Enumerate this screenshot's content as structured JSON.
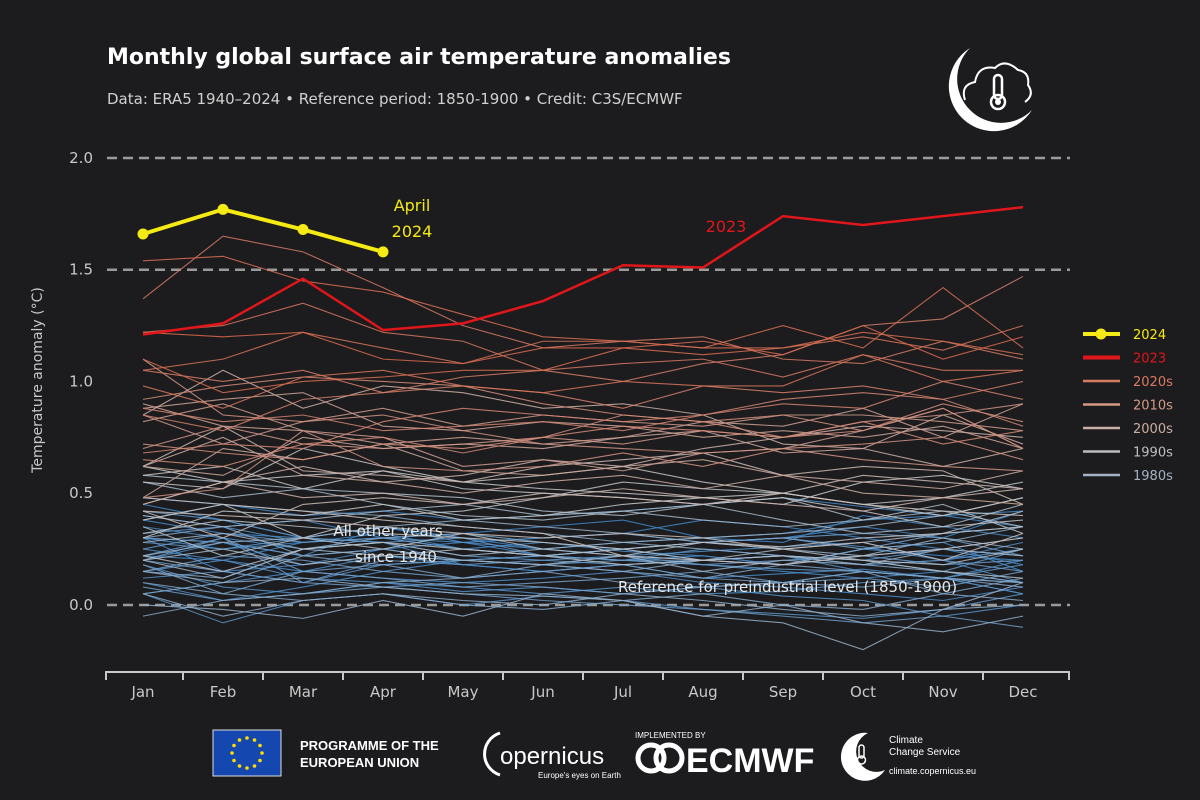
{
  "chart_data": {
    "type": "line",
    "title": "Monthly global surface air temperature anomalies",
    "subtitle": "Data: ERA5 1940–2024 • Reference period: 1850-1900 • Credit: C3S/ECMWF",
    "xlabel": "",
    "ylabel": "Temperature anomaly (°C)",
    "categories": [
      "Jan",
      "Feb",
      "Mar",
      "Apr",
      "May",
      "Jun",
      "Jul",
      "Aug",
      "Sep",
      "Oct",
      "Nov",
      "Dec"
    ],
    "yticks": [
      "0.0",
      "0.5",
      "1.0",
      "1.5",
      "2.0"
    ],
    "ylim": [
      -0.3,
      2.0
    ],
    "dashed_gridlines_at": [
      0.0,
      1.5,
      2.0
    ],
    "legend_position": "right",
    "legend": [
      {
        "label": "2024",
        "color": "#f5ea14",
        "marker": true
      },
      {
        "label": "2023",
        "color": "#e0161a"
      },
      {
        "label": "2020s",
        "color": "#d97a62"
      },
      {
        "label": "2010s",
        "color": "#d49a84"
      },
      {
        "label": "2000s",
        "color": "#c9aea3"
      },
      {
        "label": "1990s",
        "color": "#bdbdbd"
      },
      {
        "label": "1980s",
        "color": "#a3b3c4"
      }
    ],
    "highlight_series": [
      {
        "name": "2024",
        "color": "#f5ea14",
        "values": [
          1.66,
          1.77,
          1.68,
          1.58
        ]
      },
      {
        "name": "2023",
        "color": "#e0161a",
        "values": [
          1.21,
          1.26,
          1.46,
          1.23,
          1.26,
          1.36,
          1.52,
          1.51,
          1.74,
          1.7,
          1.74,
          1.78
        ]
      }
    ],
    "annotations": {
      "april_2024": [
        "April",
        "2024"
      ],
      "label_2023": "2023",
      "other_years": [
        "All other years",
        "since 1940"
      ],
      "reference": "Reference for preindustrial level (1850-1900)"
    },
    "colors": {
      "cold": "#3f86c8",
      "mid": "#c8c8c8",
      "warm": "#d9694c"
    },
    "other_years": {
      "1940": [
        0.45,
        0.38,
        0.3,
        0.35,
        0.28,
        0.3,
        0.32,
        0.28,
        0.3,
        0.35,
        0.3,
        0.42
      ],
      "1941": [
        0.4,
        0.35,
        0.38,
        0.3,
        0.32,
        0.35,
        0.38,
        0.3,
        0.28,
        0.4,
        0.35,
        0.3
      ],
      "1942": [
        0.3,
        0.25,
        0.28,
        0.32,
        0.25,
        0.22,
        0.2,
        0.22,
        0.18,
        0.25,
        0.22,
        0.2
      ],
      "1943": [
        0.2,
        0.28,
        0.22,
        0.35,
        0.3,
        0.25,
        0.28,
        0.3,
        0.32,
        0.38,
        0.4,
        0.42
      ],
      "1944": [
        0.48,
        0.45,
        0.4,
        0.42,
        0.38,
        0.4,
        0.42,
        0.45,
        0.48,
        0.44,
        0.4,
        0.35
      ],
      "1945": [
        0.38,
        0.32,
        0.3,
        0.35,
        0.28,
        0.3,
        0.32,
        0.38,
        0.35,
        0.3,
        0.25,
        0.18
      ],
      "1946": [
        0.35,
        0.3,
        0.25,
        0.28,
        0.18,
        0.15,
        0.18,
        0.2,
        0.22,
        0.18,
        0.2,
        0.1
      ],
      "1947": [
        0.22,
        0.2,
        0.28,
        0.3,
        0.25,
        0.28,
        0.24,
        0.22,
        0.18,
        0.25,
        0.28,
        0.15
      ],
      "1948": [
        0.3,
        0.15,
        0.18,
        0.25,
        0.28,
        0.22,
        0.2,
        0.18,
        0.15,
        0.12,
        0.15,
        0.1
      ],
      "1949": [
        0.25,
        0.2,
        0.15,
        0.22,
        0.18,
        0.15,
        0.18,
        0.12,
        0.14,
        0.16,
        0.12,
        0.05
      ],
      "1950": [
        0.05,
        0.1,
        0.15,
        0.12,
        0.1,
        0.12,
        0.15,
        0.1,
        0.08,
        0.05,
        0.02,
        0.08
      ],
      "1951": [
        0.1,
        0.02,
        0.08,
        0.15,
        0.2,
        0.22,
        0.25,
        0.28,
        0.3,
        0.26,
        0.2,
        0.28
      ],
      "1952": [
        0.3,
        0.28,
        0.18,
        0.22,
        0.2,
        0.18,
        0.22,
        0.2,
        0.22,
        0.15,
        0.12,
        0.2
      ],
      "1953": [
        0.32,
        0.35,
        0.28,
        0.3,
        0.28,
        0.25,
        0.22,
        0.24,
        0.26,
        0.28,
        0.2,
        0.25
      ],
      "1954": [
        0.15,
        0.2,
        0.12,
        0.1,
        0.08,
        0.05,
        0.08,
        0.05,
        0.06,
        0.1,
        0.12,
        0.05
      ],
      "1955": [
        0.18,
        0.08,
        0.05,
        0.1,
        0.06,
        0.08,
        0.05,
        0.08,
        0.04,
        0.02,
        -0.05,
        0.0
      ],
      "1956": [
        0.05,
        -0.08,
        0.02,
        0.05,
        0.0,
        0.04,
        0.02,
        -0.02,
        -0.04,
        -0.06,
        -0.02,
        0.05
      ],
      "1957": [
        0.12,
        0.15,
        0.1,
        0.18,
        0.2,
        0.22,
        0.2,
        0.25,
        0.22,
        0.2,
        0.25,
        0.3
      ],
      "1958": [
        0.42,
        0.38,
        0.3,
        0.28,
        0.3,
        0.22,
        0.25,
        0.2,
        0.18,
        0.22,
        0.25,
        0.22
      ],
      "1959": [
        0.28,
        0.25,
        0.3,
        0.28,
        0.22,
        0.2,
        0.22,
        0.18,
        0.16,
        0.15,
        0.12,
        0.18
      ],
      "1960": [
        0.22,
        0.3,
        0.1,
        0.2,
        0.18,
        0.2,
        0.18,
        0.2,
        0.22,
        0.2,
        0.15,
        0.25
      ],
      "1961": [
        0.25,
        0.32,
        0.28,
        0.3,
        0.25,
        0.22,
        0.2,
        0.2,
        0.22,
        0.18,
        0.2,
        0.15
      ],
      "1962": [
        0.3,
        0.28,
        0.22,
        0.25,
        0.2,
        0.18,
        0.2,
        0.18,
        0.2,
        0.22,
        0.18,
        0.2
      ],
      "1963": [
        0.2,
        0.3,
        0.15,
        0.18,
        0.2,
        0.22,
        0.25,
        0.28,
        0.3,
        0.32,
        0.3,
        0.22
      ],
      "1964": [
        0.2,
        0.15,
        0.1,
        0.08,
        0.05,
        0.02,
        0.0,
        -0.02,
        -0.05,
        -0.08,
        -0.05,
        -0.1
      ],
      "1965": [
        0.08,
        0.02,
        0.05,
        0.08,
        0.1,
        0.08,
        0.05,
        0.08,
        0.1,
        0.12,
        0.08,
        0.15
      ],
      "1966": [
        0.15,
        0.22,
        0.2,
        0.15,
        0.12,
        0.15,
        0.18,
        0.12,
        0.1,
        0.08,
        0.12,
        0.1
      ],
      "1967": [
        0.18,
        0.05,
        0.15,
        0.12,
        0.08,
        0.1,
        0.12,
        0.15,
        0.1,
        0.15,
        0.05,
        0.12
      ],
      "1968": [
        0.05,
        0.1,
        0.22,
        0.18,
        0.12,
        0.15,
        0.1,
        0.08,
        0.1,
        0.15,
        0.12,
        0.1
      ],
      "1969": [
        0.15,
        0.12,
        0.25,
        0.3,
        0.32,
        0.28,
        0.25,
        0.28,
        0.3,
        0.25,
        0.32,
        0.35
      ],
      "1970": [
        0.3,
        0.35,
        0.22,
        0.25,
        0.2,
        0.18,
        0.15,
        0.12,
        0.18,
        0.15,
        0.12,
        0.08
      ],
      "1971": [
        0.1,
        0.05,
        0.02,
        0.05,
        0.0,
        -0.02,
        0.02,
        0.05,
        0.0,
        -0.02,
        0.05,
        0.02
      ],
      "1972": [
        -0.05,
        0.02,
        0.05,
        0.1,
        0.12,
        0.18,
        0.15,
        0.2,
        0.18,
        0.25,
        0.28,
        0.35
      ],
      "1973": [
        0.38,
        0.45,
        0.42,
        0.4,
        0.35,
        0.32,
        0.28,
        0.25,
        0.22,
        0.18,
        0.15,
        0.1
      ],
      "1974": [
        0.05,
        -0.05,
        0.02,
        0.05,
        0.02,
        0.0,
        0.05,
        0.02,
        -0.02,
        -0.05,
        -0.02,
        0.0
      ],
      "1975": [
        0.15,
        0.1,
        0.12,
        0.08,
        0.05,
        0.04,
        0.02,
        -0.05,
        0.0,
        -0.08,
        -0.12,
        -0.05
      ],
      "1976": [
        0.0,
        -0.02,
        -0.06,
        0.02,
        -0.05,
        0.05,
        0.02,
        -0.05,
        -0.08,
        -0.2,
        -0.02,
        0.1
      ],
      "1977": [
        0.22,
        0.28,
        0.3,
        0.35,
        0.38,
        0.35,
        0.32,
        0.28,
        0.25,
        0.22,
        0.3,
        0.25
      ],
      "1978": [
        0.28,
        0.32,
        0.25,
        0.22,
        0.2,
        0.18,
        0.22,
        0.15,
        0.2,
        0.18,
        0.25,
        0.22
      ],
      "1979": [
        0.2,
        0.12,
        0.25,
        0.28,
        0.22,
        0.25,
        0.28,
        0.3,
        0.32,
        0.35,
        0.4,
        0.48
      ],
      "1980": [
        0.4,
        0.35,
        0.38,
        0.42,
        0.45,
        0.4,
        0.42,
        0.38,
        0.35,
        0.38,
        0.42,
        0.35
      ],
      "1981": [
        0.55,
        0.48,
        0.52,
        0.45,
        0.4,
        0.38,
        0.42,
        0.45,
        0.38,
        0.32,
        0.35,
        0.45
      ],
      "1982": [
        0.2,
        0.25,
        0.18,
        0.22,
        0.25,
        0.22,
        0.25,
        0.2,
        0.25,
        0.28,
        0.32,
        0.42
      ],
      "1983": [
        0.58,
        0.55,
        0.52,
        0.5,
        0.48,
        0.42,
        0.4,
        0.45,
        0.48,
        0.38,
        0.45,
        0.32
      ],
      "1984": [
        0.35,
        0.22,
        0.3,
        0.25,
        0.32,
        0.25,
        0.22,
        0.28,
        0.25,
        0.2,
        0.15,
        0.12
      ],
      "1985": [
        0.22,
        0.15,
        0.25,
        0.28,
        0.25,
        0.22,
        0.18,
        0.2,
        0.22,
        0.2,
        0.18,
        0.25
      ],
      "1986": [
        0.32,
        0.38,
        0.35,
        0.32,
        0.3,
        0.28,
        0.25,
        0.28,
        0.26,
        0.3,
        0.32,
        0.35
      ],
      "1987": [
        0.38,
        0.45,
        0.3,
        0.4,
        0.42,
        0.48,
        0.55,
        0.52,
        0.5,
        0.45,
        0.48,
        0.55
      ],
      "1988": [
        0.62,
        0.55,
        0.58,
        0.6,
        0.52,
        0.5,
        0.48,
        0.45,
        0.48,
        0.42,
        0.35,
        0.38
      ],
      "1989": [
        0.3,
        0.42,
        0.4,
        0.45,
        0.38,
        0.4,
        0.45,
        0.48,
        0.5,
        0.45,
        0.4,
        0.48
      ],
      "1990": [
        0.55,
        0.52,
        0.7,
        0.62,
        0.55,
        0.52,
        0.5,
        0.48,
        0.45,
        0.55,
        0.58,
        0.52
      ],
      "1991": [
        0.58,
        0.62,
        0.52,
        0.6,
        0.55,
        0.58,
        0.62,
        0.55,
        0.5,
        0.45,
        0.42,
        0.4
      ],
      "1992": [
        0.48,
        0.45,
        0.42,
        0.38,
        0.35,
        0.32,
        0.22,
        0.2,
        0.18,
        0.22,
        0.25,
        0.3
      ],
      "1993": [
        0.42,
        0.4,
        0.38,
        0.35,
        0.32,
        0.3,
        0.32,
        0.3,
        0.25,
        0.28,
        0.2,
        0.32
      ],
      "1994": [
        0.42,
        0.3,
        0.45,
        0.48,
        0.45,
        0.5,
        0.48,
        0.45,
        0.5,
        0.58,
        0.55,
        0.52
      ],
      "1995": [
        0.62,
        0.8,
        0.6,
        0.58,
        0.55,
        0.62,
        0.65,
        0.68,
        0.58,
        0.62,
        0.6,
        0.45
      ],
      "1996": [
        0.45,
        0.55,
        0.48,
        0.5,
        0.45,
        0.48,
        0.52,
        0.48,
        0.45,
        0.42,
        0.48,
        0.52
      ],
      "1997": [
        0.45,
        0.55,
        0.62,
        0.55,
        0.58,
        0.65,
        0.62,
        0.7,
        0.75,
        0.8,
        0.78,
        0.75
      ],
      "1998": [
        0.85,
        1.05,
        0.88,
        0.98,
        0.95,
        0.88,
        0.9,
        0.85,
        0.72,
        0.7,
        0.62,
        0.7
      ],
      "1999": [
        0.62,
        0.75,
        0.58,
        0.55,
        0.5,
        0.55,
        0.58,
        0.52,
        0.58,
        0.55,
        0.52,
        0.6
      ],
      "2000": [
        0.48,
        0.7,
        0.65,
        0.72,
        0.6,
        0.58,
        0.62,
        0.65,
        0.58,
        0.5,
        0.48,
        0.45
      ],
      "2001": [
        0.62,
        0.58,
        0.75,
        0.7,
        0.72,
        0.7,
        0.75,
        0.78,
        0.68,
        0.7,
        0.85,
        0.72
      ],
      "2002": [
        0.88,
        0.92,
        0.95,
        0.8,
        0.78,
        0.82,
        0.8,
        0.75,
        0.78,
        0.75,
        0.8,
        0.7
      ],
      "2003": [
        0.9,
        0.8,
        0.78,
        0.72,
        0.75,
        0.72,
        0.75,
        0.82,
        0.8,
        0.88,
        0.75,
        0.9
      ],
      "2004": [
        0.82,
        0.9,
        0.78,
        0.75,
        0.62,
        0.65,
        0.6,
        0.68,
        0.7,
        0.78,
        0.88,
        0.7
      ],
      "2005": [
        0.85,
        0.72,
        0.82,
        0.88,
        0.8,
        0.85,
        0.82,
        0.8,
        0.85,
        0.85,
        0.82,
        0.78
      ],
      "2006": [
        0.7,
        0.8,
        0.72,
        0.7,
        0.72,
        0.75,
        0.72,
        0.78,
        0.75,
        0.82,
        0.85,
        0.9
      ],
      "2007": [
        1.1,
        0.85,
        0.82,
        0.85,
        0.78,
        0.72,
        0.7,
        0.68,
        0.7,
        0.65,
        0.62,
        0.6
      ],
      "2008": [
        0.48,
        0.52,
        0.78,
        0.62,
        0.6,
        0.62,
        0.68,
        0.62,
        0.7,
        0.72,
        0.75,
        0.65
      ],
      "2009": [
        0.72,
        0.68,
        0.65,
        0.72,
        0.7,
        0.75,
        0.85,
        0.82,
        0.85,
        0.78,
        0.9,
        0.82
      ],
      "2010": [
        0.92,
        0.98,
        1.02,
        1.0,
        0.98,
        0.9,
        0.85,
        0.82,
        0.75,
        0.78,
        0.88,
        0.7
      ],
      "2011": [
        0.65,
        0.62,
        0.72,
        0.75,
        0.68,
        0.75,
        0.8,
        0.78,
        0.75,
        0.82,
        0.72,
        0.78
      ],
      "2012": [
        0.68,
        0.72,
        0.7,
        0.82,
        0.88,
        0.85,
        0.82,
        0.85,
        0.92,
        0.95,
        0.92,
        0.8
      ],
      "2013": [
        0.88,
        0.82,
        0.85,
        0.78,
        0.8,
        0.82,
        0.78,
        0.85,
        0.9,
        0.88,
        1.0,
        0.92
      ],
      "2014": [
        0.85,
        0.78,
        0.92,
        0.95,
        0.98,
        0.95,
        0.88,
        0.98,
        0.95,
        0.98,
        0.92,
        1.0
      ],
      "2015": [
        1.05,
        1.0,
        1.05,
        0.95,
        1.02,
        1.05,
        1.0,
        1.08,
        1.12,
        1.25,
        1.28,
        1.47
      ],
      "2016": [
        1.37,
        1.65,
        1.58,
        1.42,
        1.25,
        1.15,
        1.18,
        1.2,
        1.1,
        1.08,
        1.18,
        1.1
      ],
      "2017": [
        1.22,
        1.25,
        1.35,
        1.22,
        1.18,
        1.05,
        1.08,
        1.1,
        1.02,
        1.12,
        1.05,
        1.05
      ],
      "2018": [
        0.98,
        0.88,
        1.02,
        1.05,
        0.98,
        0.95,
        1.0,
        0.98,
        0.98,
        1.12,
        1.0,
        1.05
      ],
      "2019": [
        1.05,
        1.1,
        1.22,
        1.15,
        1.08,
        1.18,
        1.18,
        1.15,
        1.15,
        1.2,
        1.14,
        1.25
      ],
      "2020": [
        1.54,
        1.56,
        1.45,
        1.4,
        1.3,
        1.2,
        1.18,
        1.15,
        1.25,
        1.15,
        1.42,
        1.15
      ],
      "2021": [
        1.1,
        0.95,
        1.0,
        1.02,
        1.05,
        1.05,
        1.15,
        1.12,
        1.15,
        1.22,
        1.18,
        1.12
      ],
      "2022": [
        1.22,
        1.2,
        1.22,
        1.1,
        1.08,
        1.15,
        1.15,
        1.18,
        1.12,
        1.25,
        1.1,
        1.2
      ]
    }
  },
  "footer": {
    "eu_line1": "PROGRAMME OF THE",
    "eu_line2": "EUROPEAN UNION",
    "copernicus": "opernicus",
    "copernicus_tagline": "Europe's eyes on Earth",
    "implemented_by": "IMPLEMENTED BY",
    "ecmwf": "ECMWF",
    "c3s_line1": "Climate",
    "c3s_line2": "Change Service",
    "c3s_url": "climate.copernicus.eu"
  },
  "icons": {
    "top_logo": "crescent-cloud-thermometer-icon"
  }
}
